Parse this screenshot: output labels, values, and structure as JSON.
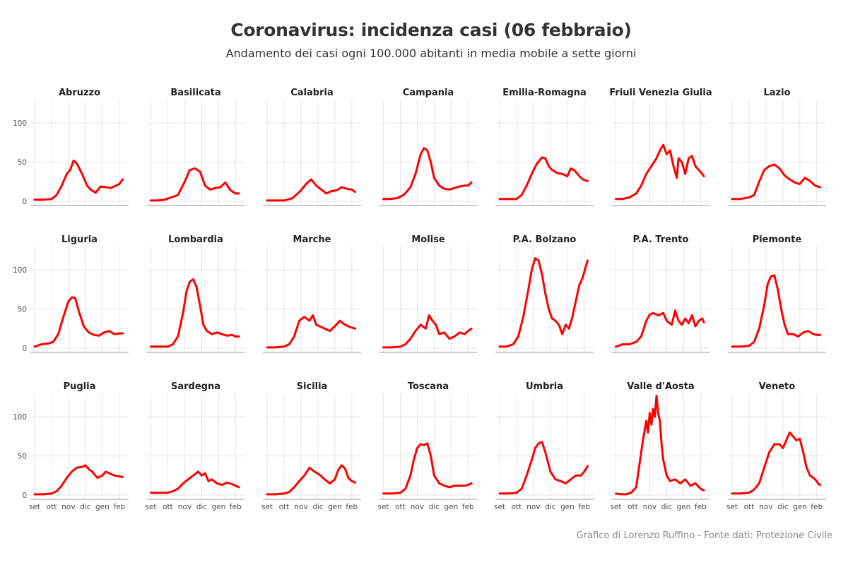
{
  "title": "Coronavirus: incidenza casi (06 febbraio)",
  "subtitle": "Andamento dei casi ogni 100.000 abitanti in media mobile a sette giorni",
  "caption": "Grafico di Lorenzo Ruffino - Fonte dati: Protezione Civile",
  "colors": {
    "line": "#ff0000",
    "grid": "#e6e6e6",
    "axis": "#9a9a9a"
  },
  "chart_data": {
    "type": "line",
    "layout": "small-multiples",
    "ylim": [
      0,
      130
    ],
    "y_ticks": [
      0,
      50,
      100
    ],
    "y_tick_labels": [
      "0",
      "50",
      "100"
    ],
    "x_ticks": [
      "set",
      "ott",
      "nov",
      "dic",
      "gen",
      "feb"
    ],
    "xlim": [
      0,
      5.3
    ],
    "grid": true,
    "panels": [
      {
        "name": "Abruzzo",
        "x": [
          0,
          0.5,
          1,
          1.3,
          1.6,
          1.9,
          2.1,
          2.3,
          2.5,
          2.8,
          3.1,
          3.3,
          3.6,
          3.9,
          4.2,
          4.5,
          4.8,
          5.0,
          5.2
        ],
        "y": [
          2,
          2,
          3,
          8,
          20,
          35,
          40,
          52,
          48,
          35,
          20,
          15,
          11,
          19,
          18,
          17,
          20,
          22,
          28
        ]
      },
      {
        "name": "Basilicata",
        "x": [
          0,
          0.4,
          0.8,
          1.2,
          1.6,
          2.0,
          2.3,
          2.6,
          2.9,
          3.2,
          3.5,
          3.8,
          4.1,
          4.4,
          4.7,
          5.0,
          5.2
        ],
        "y": [
          1,
          1,
          2,
          5,
          8,
          25,
          40,
          42,
          38,
          20,
          15,
          17,
          18,
          24,
          14,
          10,
          10
        ]
      },
      {
        "name": "Calabria",
        "x": [
          0,
          0.5,
          1,
          1.5,
          2.0,
          2.3,
          2.6,
          2.9,
          3.2,
          3.5,
          3.8,
          4.1,
          4.4,
          4.7,
          5.0,
          5.2
        ],
        "y": [
          1,
          1,
          1,
          4,
          14,
          22,
          28,
          20,
          15,
          10,
          13,
          14,
          18,
          16,
          15,
          12
        ]
      },
      {
        "name": "Campania",
        "x": [
          0,
          0.4,
          0.8,
          1.2,
          1.6,
          1.9,
          2.2,
          2.4,
          2.6,
          2.8,
          3.0,
          3.3,
          3.6,
          3.9,
          4.2,
          4.5,
          4.8,
          5.0,
          5.2
        ],
        "y": [
          3,
          3,
          4,
          8,
          18,
          35,
          60,
          68,
          65,
          50,
          30,
          20,
          16,
          15,
          17,
          19,
          20,
          20,
          24
        ]
      },
      {
        "name": "Emilia-Romagna",
        "x": [
          0,
          0.5,
          1,
          1.3,
          1.6,
          1.9,
          2.2,
          2.5,
          2.7,
          2.9,
          3.1,
          3.4,
          3.7,
          4.0,
          4.2,
          4.4,
          4.6,
          4.8,
          5.0,
          5.2
        ],
        "y": [
          3,
          3,
          3,
          8,
          20,
          35,
          48,
          56,
          55,
          45,
          40,
          36,
          35,
          32,
          42,
          40,
          35,
          30,
          27,
          26
        ]
      },
      {
        "name": "Friuli Venezia Giulia",
        "x": [
          0,
          0.4,
          0.8,
          1.2,
          1.5,
          1.8,
          2.1,
          2.4,
          2.6,
          2.8,
          3.0,
          3.2,
          3.4,
          3.6,
          3.7,
          3.9,
          4.1,
          4.3,
          4.5,
          4.7,
          4.9,
          5.1,
          5.2
        ],
        "y": [
          3,
          3,
          5,
          10,
          20,
          35,
          45,
          55,
          65,
          72,
          60,
          65,
          45,
          30,
          55,
          50,
          35,
          55,
          58,
          45,
          40,
          35,
          32
        ]
      },
      {
        "name": "Lazio",
        "x": [
          0,
          0.5,
          1,
          1.3,
          1.6,
          1.9,
          2.2,
          2.5,
          2.8,
          3.1,
          3.4,
          3.7,
          4.0,
          4.3,
          4.6,
          4.9,
          5.2
        ],
        "y": [
          3,
          3,
          5,
          8,
          25,
          40,
          45,
          47,
          42,
          33,
          28,
          24,
          22,
          30,
          26,
          20,
          18
        ]
      },
      {
        "name": "Liguria",
        "x": [
          0,
          0.4,
          0.8,
          1.1,
          1.4,
          1.7,
          2.0,
          2.2,
          2.4,
          2.6,
          2.9,
          3.2,
          3.5,
          3.8,
          4.1,
          4.4,
          4.7,
          5.0,
          5.2
        ],
        "y": [
          2,
          5,
          6,
          8,
          18,
          40,
          60,
          65,
          64,
          48,
          28,
          20,
          17,
          16,
          20,
          22,
          18,
          19,
          19
        ]
      },
      {
        "name": "Lombardia",
        "x": [
          0,
          0.5,
          1,
          1.3,
          1.6,
          1.9,
          2.1,
          2.3,
          2.5,
          2.7,
          2.9,
          3.1,
          3.3,
          3.6,
          3.9,
          4.2,
          4.5,
          4.8,
          5.0,
          5.2
        ],
        "y": [
          2,
          2,
          2,
          5,
          15,
          45,
          72,
          85,
          88,
          78,
          55,
          30,
          22,
          18,
          20,
          18,
          16,
          17,
          15,
          15
        ]
      },
      {
        "name": "Marche",
        "x": [
          0,
          0.5,
          1,
          1.3,
          1.6,
          1.9,
          2.2,
          2.5,
          2.7,
          2.9,
          3.1,
          3.4,
          3.7,
          4.0,
          4.3,
          4.6,
          4.9,
          5.2
        ],
        "y": [
          1,
          1,
          2,
          5,
          15,
          35,
          40,
          35,
          42,
          30,
          28,
          25,
          22,
          28,
          35,
          30,
          27,
          25
        ]
      },
      {
        "name": "Molise",
        "x": [
          0,
          0.5,
          1,
          1.3,
          1.6,
          1.9,
          2.2,
          2.5,
          2.7,
          2.9,
          3.1,
          3.3,
          3.6,
          3.9,
          4.2,
          4.5,
          4.8,
          5.0,
          5.2
        ],
        "y": [
          1,
          1,
          2,
          5,
          12,
          22,
          30,
          25,
          42,
          35,
          30,
          18,
          20,
          12,
          15,
          20,
          18,
          22,
          25
        ]
      },
      {
        "name": "P.A. Bolzano",
        "x": [
          0,
          0.4,
          0.8,
          1.1,
          1.4,
          1.7,
          1.9,
          2.1,
          2.3,
          2.5,
          2.7,
          2.9,
          3.1,
          3.3,
          3.5,
          3.7,
          3.9,
          4.1,
          4.3,
          4.5,
          4.7,
          4.9,
          5.1,
          5.2
        ],
        "y": [
          2,
          2,
          5,
          15,
          40,
          75,
          100,
          115,
          112,
          95,
          70,
          50,
          38,
          35,
          30,
          18,
          30,
          25,
          40,
          60,
          80,
          90,
          105,
          112
        ]
      },
      {
        "name": "P.A. Trento",
        "x": [
          0,
          0.4,
          0.8,
          1.2,
          1.5,
          1.8,
          2.0,
          2.2,
          2.5,
          2.8,
          3.0,
          3.3,
          3.5,
          3.7,
          3.9,
          4.1,
          4.3,
          4.5,
          4.7,
          4.9,
          5.1,
          5.2
        ],
        "y": [
          2,
          5,
          5,
          8,
          15,
          35,
          43,
          45,
          42,
          45,
          35,
          30,
          48,
          35,
          30,
          38,
          32,
          42,
          28,
          35,
          38,
          33
        ]
      },
      {
        "name": "Piemonte",
        "x": [
          0,
          0.5,
          1,
          1.3,
          1.6,
          1.9,
          2.1,
          2.3,
          2.5,
          2.7,
          2.9,
          3.1,
          3.3,
          3.6,
          3.9,
          4.2,
          4.5,
          4.8,
          5.0,
          5.2
        ],
        "y": [
          2,
          2,
          3,
          8,
          25,
          55,
          82,
          92,
          93,
          75,
          50,
          30,
          18,
          18,
          15,
          20,
          22,
          18,
          17,
          17
        ]
      },
      {
        "name": "Puglia",
        "x": [
          0,
          0.5,
          1,
          1.3,
          1.6,
          1.9,
          2.2,
          2.5,
          2.8,
          3.0,
          3.2,
          3.4,
          3.7,
          4.0,
          4.2,
          4.4,
          4.7,
          5.0,
          5.2
        ],
        "y": [
          1,
          1,
          2,
          5,
          12,
          22,
          30,
          35,
          36,
          38,
          33,
          30,
          22,
          25,
          30,
          28,
          25,
          24,
          23
        ]
      },
      {
        "name": "Sardegna",
        "x": [
          0,
          0.5,
          1,
          1.3,
          1.6,
          1.9,
          2.2,
          2.5,
          2.8,
          3.0,
          3.2,
          3.4,
          3.6,
          3.9,
          4.2,
          4.5,
          4.8,
          5.0,
          5.2
        ],
        "y": [
          3,
          3,
          3,
          5,
          8,
          15,
          20,
          25,
          30,
          25,
          28,
          18,
          20,
          15,
          13,
          16,
          14,
          12,
          10
        ]
      },
      {
        "name": "Sicilia",
        "x": [
          0,
          0.5,
          1,
          1.3,
          1.6,
          1.9,
          2.2,
          2.5,
          2.8,
          3.1,
          3.4,
          3.7,
          4.0,
          4.2,
          4.4,
          4.6,
          4.8,
          5.0,
          5.2
        ],
        "y": [
          1,
          1,
          2,
          4,
          10,
          18,
          25,
          35,
          30,
          26,
          20,
          15,
          20,
          32,
          38,
          34,
          22,
          18,
          16
        ]
      },
      {
        "name": "Toscana",
        "x": [
          0,
          0.5,
          1,
          1.3,
          1.6,
          1.8,
          2.0,
          2.2,
          2.4,
          2.6,
          2.8,
          3.0,
          3.3,
          3.6,
          3.9,
          4.2,
          4.5,
          4.8,
          5.0,
          5.2
        ],
        "y": [
          2,
          2,
          3,
          8,
          25,
          45,
          60,
          65,
          64,
          66,
          50,
          25,
          15,
          12,
          10,
          12,
          12,
          12,
          13,
          15
        ]
      },
      {
        "name": "Umbria",
        "x": [
          0,
          0.5,
          1,
          1.3,
          1.6,
          1.9,
          2.1,
          2.3,
          2.5,
          2.7,
          3.0,
          3.3,
          3.6,
          3.9,
          4.2,
          4.5,
          4.8,
          5.0,
          5.2
        ],
        "y": [
          2,
          2,
          3,
          8,
          25,
          45,
          60,
          66,
          68,
          55,
          30,
          20,
          18,
          15,
          20,
          25,
          25,
          30,
          37
        ]
      },
      {
        "name": "Valle d'Aosta",
        "x": [
          0,
          0.3,
          0.6,
          0.9,
          1.2,
          1.4,
          1.6,
          1.8,
          1.9,
          2.0,
          2.1,
          2.2,
          2.3,
          2.4,
          2.5,
          2.6,
          2.7,
          2.8,
          3.0,
          3.2,
          3.5,
          3.8,
          4.1,
          4.4,
          4.7,
          5.0,
          5.2
        ],
        "y": [
          2,
          1,
          1,
          3,
          10,
          40,
          70,
          95,
          80,
          105,
          90,
          110,
          100,
          127,
          105,
          95,
          65,
          45,
          25,
          18,
          20,
          15,
          20,
          12,
          15,
          8,
          6
        ]
      },
      {
        "name": "Veneto",
        "x": [
          0,
          0.5,
          1,
          1.3,
          1.6,
          1.9,
          2.2,
          2.5,
          2.8,
          3.0,
          3.2,
          3.4,
          3.6,
          3.8,
          4.0,
          4.2,
          4.4,
          4.6,
          4.8,
          5.0,
          5.1,
          5.2
        ],
        "y": [
          2,
          2,
          3,
          7,
          15,
          35,
          55,
          65,
          65,
          60,
          70,
          80,
          75,
          70,
          72,
          55,
          35,
          25,
          22,
          18,
          14,
          13
        ]
      }
    ]
  }
}
